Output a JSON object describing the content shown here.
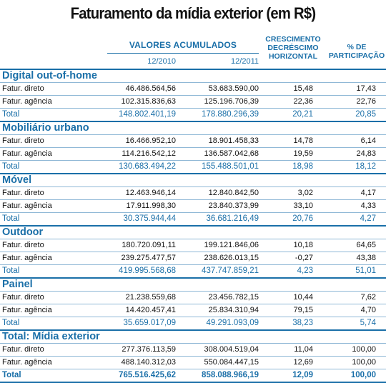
{
  "title": "Faturamento da mídia exterior (em R$)",
  "header": {
    "valores_acumulados": "VALORES ACUMULADOS",
    "period_1": "12/2010",
    "period_2": "12/2011",
    "crescimento": [
      "CRESCIMENTO",
      "DECRÉSCIMO",
      "HORIZONTAL"
    ],
    "participacao": [
      "% DE",
      "PARTICIPAÇÃO"
    ]
  },
  "sections": [
    {
      "name": "Digital out-of-home",
      "rows": [
        {
          "label": "Fatur. direto",
          "v2010": "46.486.564,56",
          "v2011": "53.683.590,00",
          "cresc": "15,48",
          "part": "17,43"
        },
        {
          "label": "Fatur. agência",
          "v2010": "102.315.836,63",
          "v2011": "125.196.706,39",
          "cresc": "22,36",
          "part": "22,76"
        }
      ],
      "total": {
        "label": "Total",
        "v2010": "148.802.401,19",
        "v2011": "178.880.296,39",
        "cresc": "20,21",
        "part": "20,85"
      }
    },
    {
      "name": "Mobiliário urbano",
      "rows": [
        {
          "label": "Fatur. direto",
          "v2010": "16.466.952,10",
          "v2011": "18.901.458,33",
          "cresc": "14,78",
          "part": "6,14"
        },
        {
          "label": "Fatur. agência",
          "v2010": "114.216.542,12",
          "v2011": "136.587.042,68",
          "cresc": "19,59",
          "part": "24,83"
        }
      ],
      "total": {
        "label": "Total",
        "v2010": "130.683.494,22",
        "v2011": "155.488.501,01",
        "cresc": "18,98",
        "part": "18,12"
      }
    },
    {
      "name": "Móvel",
      "rows": [
        {
          "label": "Fatur. direto",
          "v2010": "12.463.946,14",
          "v2011": "12.840.842,50",
          "cresc": "3,02",
          "part": "4,17"
        },
        {
          "label": "Fatur. agência",
          "v2010": "17.911.998,30",
          "v2011": "23.840.373,99",
          "cresc": "33,10",
          "part": "4,33"
        }
      ],
      "total": {
        "label": "Total",
        "v2010": "30.375.944,44",
        "v2011": "36.681.216,49",
        "cresc": "20,76",
        "part": "4,27"
      }
    },
    {
      "name": "Outdoor",
      "rows": [
        {
          "label": "Fatur. direto",
          "v2010": "180.720.091,11",
          "v2011": "199.121.846,06",
          "cresc": "10,18",
          "part": "64,65"
        },
        {
          "label": "Fatur. agência",
          "v2010": "239.275.477,57",
          "v2011": "238.626.013,15",
          "cresc": "-0,27",
          "part": "43,38"
        }
      ],
      "total": {
        "label": "Total",
        "v2010": "419.995.568,68",
        "v2011": "437.747.859,21",
        "cresc": "4,23",
        "part": "51,01"
      }
    },
    {
      "name": "Painel",
      "rows": [
        {
          "label": "Fatur. direto",
          "v2010": "21.238.559,68",
          "v2011": "23.456.782,15",
          "cresc": "10,44",
          "part": "7,62"
        },
        {
          "label": "Fatur. agência",
          "v2010": "14.420.457,41",
          "v2011": "25.834.310,94",
          "cresc": "79,15",
          "part": "4,70"
        }
      ],
      "total": {
        "label": "Total",
        "v2010": "35.659.017,09",
        "v2011": "49.291.093,09",
        "cresc": "38,23",
        "part": "5,74"
      }
    },
    {
      "name": "Total: Mídia exterior",
      "rows": [
        {
          "label": "Fatur. direto",
          "v2010": "277.376.113,59",
          "v2011": "308.004.519,04",
          "cresc": "11,04",
          "part": "100,00"
        },
        {
          "label": "Fatur. agência",
          "v2010": "488.140.312,03",
          "v2011": "550.084.447,15",
          "cresc": "12,69",
          "part": "100,00"
        }
      ],
      "total": {
        "label": "Total",
        "v2010": "765.516.425,62",
        "v2011": "858.088.966,19",
        "cresc": "12,09",
        "part": "100,00"
      }
    }
  ]
}
